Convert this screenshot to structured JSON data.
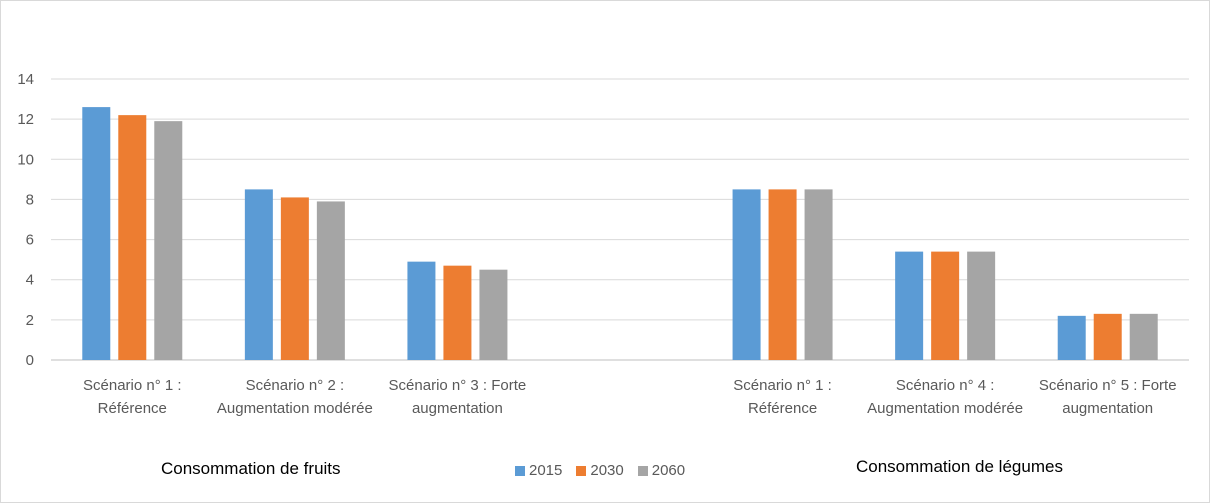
{
  "chart_data": {
    "type": "bar",
    "categories": [
      "Scénario n° 1 : Référence",
      "Scénario n° 2 : Augmentation modérée",
      "Scénario n° 3 : Forte augmentation",
      "",
      "Scénario n° 1 : Référence",
      "Scénario n° 4 : Augmentation modérée",
      "Scénario n° 5 : Forte augmentation"
    ],
    "series": [
      {
        "name": "2015",
        "color": "#5b9bd5",
        "values": [
          12.6,
          8.5,
          4.9,
          null,
          8.5,
          5.4,
          2.2
        ]
      },
      {
        "name": "2030",
        "color": "#ed7d31",
        "values": [
          12.2,
          8.1,
          4.7,
          null,
          8.5,
          5.4,
          2.3
        ]
      },
      {
        "name": "2060",
        "color": "#a5a5a5",
        "values": [
          11.9,
          7.9,
          4.5,
          null,
          8.5,
          5.4,
          2.3
        ]
      }
    ],
    "ylim": [
      0,
      14
    ],
    "yticks": [
      0,
      2,
      4,
      6,
      8,
      10,
      12,
      14
    ],
    "grid": true,
    "legend_position": "bottom",
    "group_titles": [
      "Consommation de fruits",
      "Consommation de légumes"
    ]
  }
}
